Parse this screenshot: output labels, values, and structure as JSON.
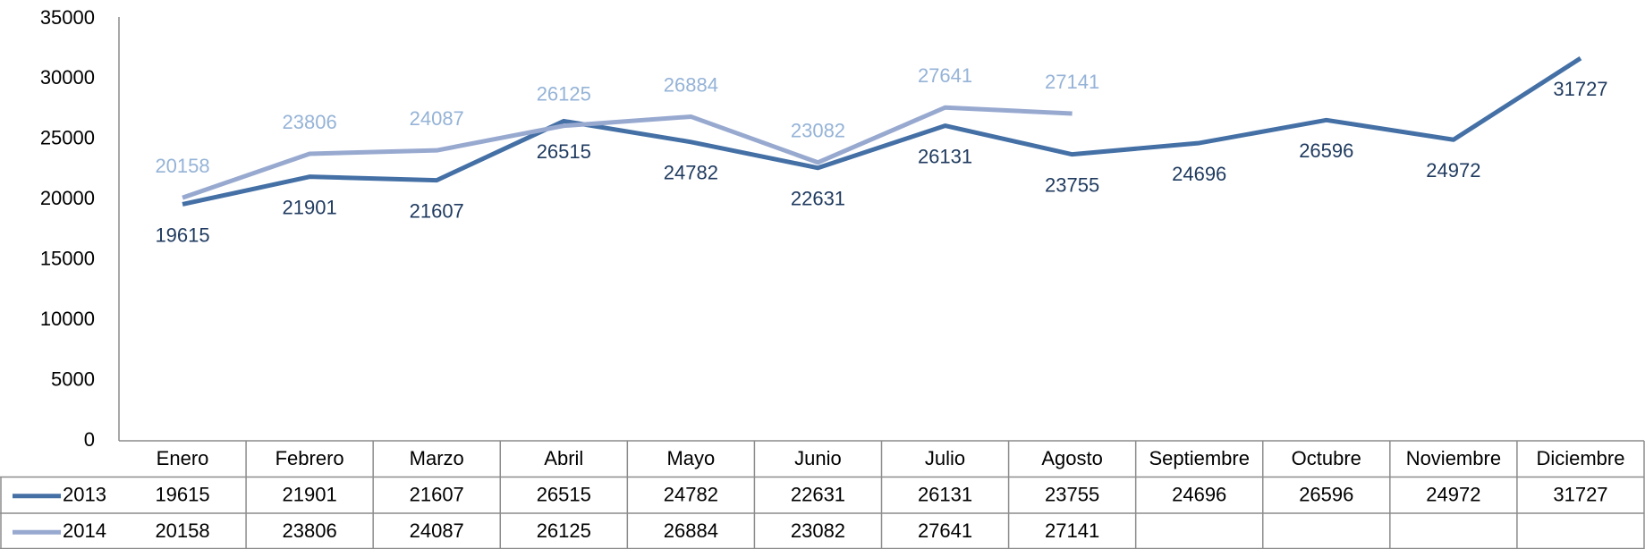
{
  "chart_data": {
    "type": "line",
    "categories": [
      "Enero",
      "Febrero",
      "Marzo",
      "Abril",
      "Mayo",
      "Junio",
      "Julio",
      "Agosto",
      "Septiembre",
      "Octubre",
      "Noviembre",
      "Diciembre"
    ],
    "series": [
      {
        "name": "2013",
        "color": "#4470a6",
        "label_color": "#1f3a5f",
        "values": [
          19615,
          21901,
          21607,
          26515,
          24782,
          22631,
          26131,
          23755,
          24696,
          26596,
          24972,
          31727
        ]
      },
      {
        "name": "2014",
        "color": "#98a9d0",
        "label_color": "#95b3d7",
        "values": [
          20158,
          23806,
          24087,
          26125,
          26884,
          23082,
          27641,
          27141,
          null,
          null,
          null,
          null
        ]
      }
    ],
    "ylim": [
      0,
      35000
    ],
    "yticks": [
      0,
      5000,
      10000,
      15000,
      20000,
      25000,
      30000,
      35000
    ],
    "grid": false
  }
}
